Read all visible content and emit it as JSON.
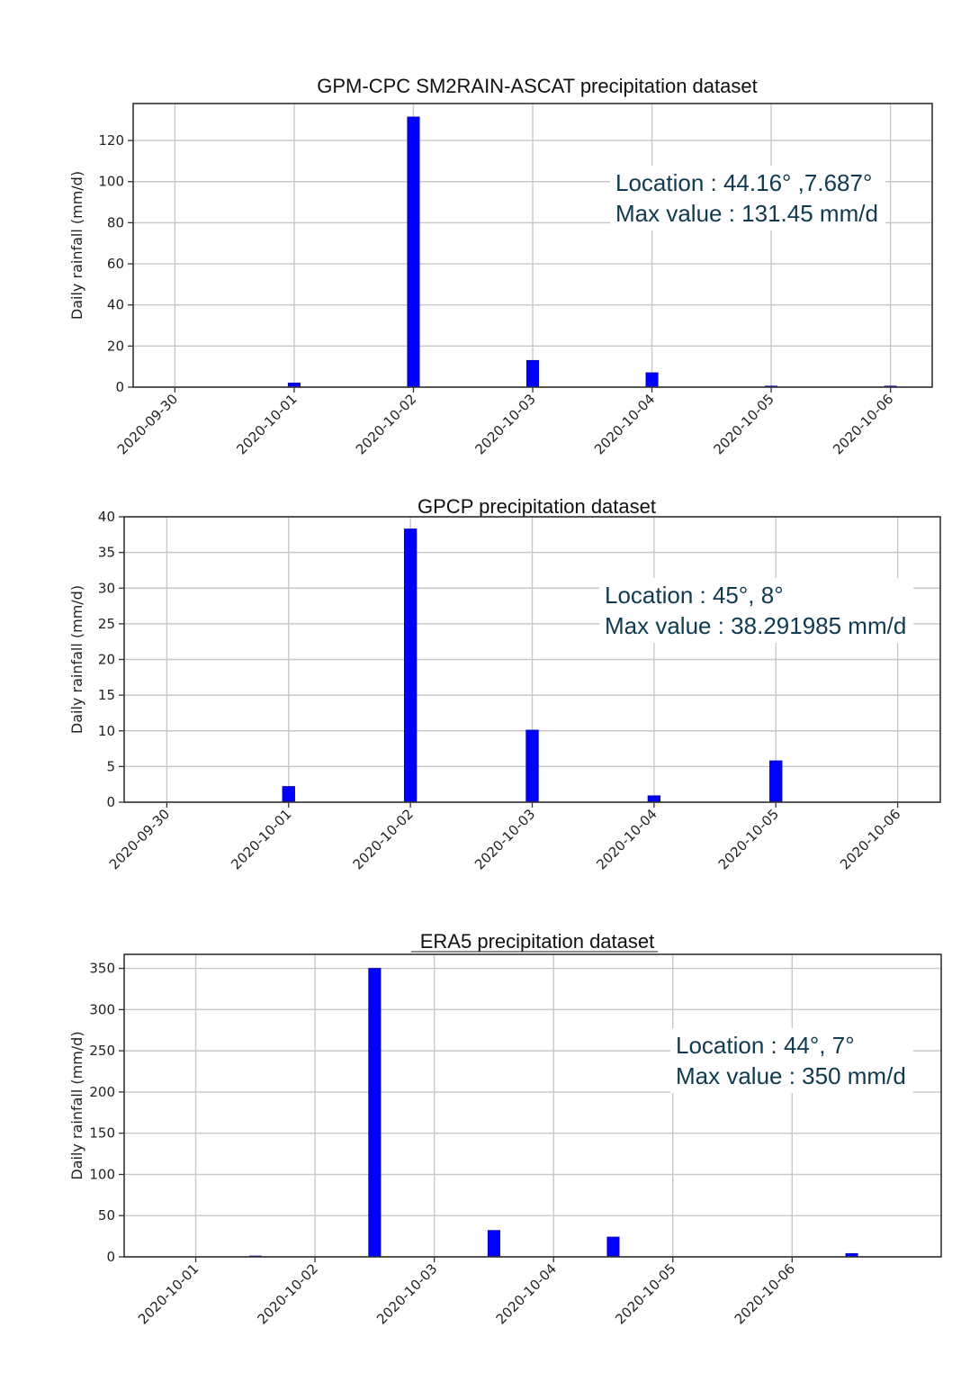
{
  "chart_data": [
    {
      "type": "bar",
      "title": "GPM-CPC SM2RAIN-ASCAT precipitation dataset",
      "ylabel": "Daily rainfall (mm/d)",
      "xlabel": "",
      "x_ticks": [
        "2020-09-30",
        "2020-10-01",
        "2020-10-02",
        "2020-10-03",
        "2020-10-04",
        "2020-10-05",
        "2020-10-06"
      ],
      "y_ticks": [
        0,
        20,
        40,
        60,
        80,
        100,
        120
      ],
      "ylim": [
        0,
        138
      ],
      "xlim_days": [
        -0.35,
        6.35
      ],
      "grid": true,
      "bars": [
        {
          "date": "2020-10-01",
          "value": 2
        },
        {
          "date": "2020-10-02",
          "value": 131.45
        },
        {
          "date": "2020-10-03",
          "value": 13
        },
        {
          "date": "2020-10-04",
          "value": 7
        },
        {
          "date": "2020-10-05",
          "value": 0.5
        },
        {
          "date": "2020-10-06",
          "value": 0.5
        }
      ],
      "annotation": [
        "Location : 44.16° ,7.687°",
        "Max value : 131.45 mm/d"
      ]
    },
    {
      "type": "bar",
      "title": "GPCP precipitation dataset",
      "ylabel": "Daily rainfall (mm/d)",
      "xlabel": "",
      "x_ticks": [
        "2020-09-30",
        "2020-10-01",
        "2020-10-02",
        "2020-10-03",
        "2020-10-04",
        "2020-10-05",
        "2020-10-06"
      ],
      "y_ticks": [
        0,
        5,
        10,
        15,
        20,
        25,
        30,
        35,
        40
      ],
      "ylim": [
        0,
        40
      ],
      "xlim_days": [
        -0.35,
        6.35
      ],
      "grid": true,
      "bars": [
        {
          "date": "2020-10-01",
          "value": 2.2
        },
        {
          "date": "2020-10-02",
          "value": 38.291985
        },
        {
          "date": "2020-10-03",
          "value": 10.1
        },
        {
          "date": "2020-10-04",
          "value": 0.9
        },
        {
          "date": "2020-10-05",
          "value": 5.8
        }
      ],
      "annotation": [
        "Location : 45°, 8°",
        "Max value : 38.291985 mm/d"
      ]
    },
    {
      "type": "bar",
      "title": "ERA5 precipitation dataset",
      "ylabel": "Daily rainfall (mm/d)",
      "xlabel": "",
      "x_ticks": [
        "2020-10-01",
        "2020-10-02",
        "2020-10-03",
        "2020-10-04",
        "2020-10-05",
        "2020-10-06"
      ],
      "y_ticks": [
        0,
        50,
        100,
        150,
        200,
        250,
        300,
        350
      ],
      "ylim": [
        0,
        367
      ],
      "xlim_days": [
        0.4,
        7.25
      ],
      "grid": true,
      "bars": [
        {
          "date": "2020-10-01T12:00",
          "value": 1
        },
        {
          "date": "2020-10-02T12:00",
          "value": 350
        },
        {
          "date": "2020-10-03T12:00",
          "value": 32
        },
        {
          "date": "2020-10-04T12:00",
          "value": 24
        },
        {
          "date": "2020-10-06T12:00",
          "value": 4
        }
      ],
      "annotation": [
        "Location : 44°, 7°",
        "Max value : 350 mm/d"
      ]
    }
  ]
}
